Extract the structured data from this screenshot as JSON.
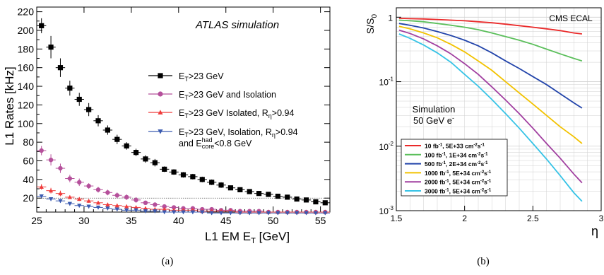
{
  "captions": [
    "(a)",
    "(b)"
  ],
  "colors": {
    "a_black": "#000000",
    "a_magenta": "#b5509b",
    "a_red": "#ef3b3b",
    "a_blue": "#3b5bb0",
    "b_red": "#ea2a2a",
    "b_green": "#5bbf5b",
    "b_blue": "#2244aa",
    "b_yellow": "#f2c200",
    "b_purple": "#a13fa0",
    "b_cyan": "#36c3e6",
    "grid": "#cfcfcf",
    "dotted": "#555555"
  },
  "chart_data": [
    {
      "type": "scatter",
      "title": "ATLAS simulation",
      "xlabel": "L1 EM E_T [GeV]",
      "ylabel": "L1 Rates [kHz]",
      "xlim": [
        25,
        56
      ],
      "ylim": [
        5,
        225
      ],
      "xticks": [
        25,
        30,
        35,
        40,
        45,
        50,
        55
      ],
      "yticks": [
        20,
        40,
        60,
        80,
        100,
        120,
        140,
        160,
        180,
        200,
        220
      ],
      "grid": false,
      "legend_position": "center-right",
      "reference_line_y": 20,
      "series": [
        {
          "name": "E_T>23 GeV",
          "marker": "square",
          "x": [
            25.5,
            26.5,
            27.5,
            28.5,
            29.5,
            30.5,
            31.5,
            32.5,
            33.5,
            34.5,
            35.5,
            36.5,
            37.5,
            38.5,
            39.5,
            40.5,
            41.5,
            42.5,
            43.5,
            44.5,
            45.5,
            46.5,
            47.5,
            48.5,
            49.5,
            50.5,
            51.5,
            52.5,
            53.5,
            54.5,
            55.5
          ],
          "y": [
            205,
            182,
            160,
            138,
            126,
            115,
            103,
            93,
            83,
            76,
            69,
            62,
            58,
            51,
            48,
            45,
            43,
            40,
            37,
            34,
            31,
            29,
            27,
            25,
            24,
            22,
            21,
            19,
            18,
            16,
            15
          ],
          "err": [
            8,
            12,
            10,
            8,
            7,
            7,
            6,
            5,
            5,
            4,
            4,
            4,
            4,
            3,
            3,
            3,
            3,
            3,
            3,
            3,
            2,
            2,
            2,
            2,
            2,
            2,
            2,
            2,
            2,
            2,
            2
          ]
        },
        {
          "name": "E_T>23 GeV and Isolation",
          "marker": "circle",
          "x": [
            25.5,
            26.5,
            27.5,
            28.5,
            29.5,
            30.5,
            31.5,
            32.5,
            33.5,
            34.5,
            35.5,
            36.5,
            37.5,
            38.5,
            39.5,
            40.5,
            41.5,
            42.5,
            43.5,
            44.5,
            45.5,
            46.5,
            47.5,
            48.5,
            49.5,
            50.5,
            51.5,
            52.5,
            53.5,
            54.5,
            55.5
          ],
          "y": [
            71,
            61,
            52,
            41,
            37,
            33,
            29,
            26,
            23,
            21,
            18,
            15,
            13,
            11,
            10,
            9,
            9,
            8,
            8,
            7,
            7,
            6,
            6,
            6,
            5,
            5,
            5,
            5,
            5,
            5,
            5
          ],
          "err": [
            5,
            6,
            5,
            4,
            4,
            3,
            3,
            3,
            3,
            3,
            3,
            2,
            2,
            2,
            2,
            2,
            2,
            2,
            2,
            2,
            2,
            2,
            2,
            2,
            2,
            2,
            2,
            2,
            2,
            2,
            2
          ]
        },
        {
          "name": "E_T>23 GeV Isolated, R_η>0.94",
          "marker": "triangle-up",
          "x": [
            25.5,
            26.5,
            27.5,
            28.5,
            29.5,
            30.5,
            31.5,
            32.5,
            33.5,
            34.5,
            35.5,
            36.5,
            37.5,
            38.5,
            39.5,
            40.5,
            41.5,
            42.5,
            43.5,
            44.5,
            45.5,
            46.5,
            47.5,
            48.5,
            49.5,
            50.5,
            51.5,
            52.5,
            53.5,
            54.5,
            55.5
          ],
          "y": [
            32,
            28,
            25,
            21,
            19,
            17,
            15,
            13,
            12,
            11,
            10,
            9,
            8,
            8,
            7,
            7,
            7,
            6,
            6,
            6,
            6,
            5,
            5,
            5,
            5,
            5,
            5,
            5,
            5,
            5,
            5
          ],
          "err": [
            3,
            3,
            3,
            2,
            2,
            2,
            2,
            2,
            2,
            2,
            2,
            2,
            2,
            2,
            2,
            2,
            2,
            2,
            2,
            2,
            2,
            2,
            2,
            2,
            2,
            2,
            2,
            2,
            2,
            2,
            2
          ]
        },
        {
          "name": "E_T>23 GeV, Isolation, R_η>0.94 and E_core^had<0.8 GeV",
          "marker": "triangle-down",
          "x": [
            25.5,
            26.5,
            27.5,
            28.5,
            29.5,
            30.5,
            31.5,
            32.5,
            33.5,
            34.5,
            35.5,
            36.5,
            37.5,
            38.5,
            39.5,
            40.5,
            41.5,
            42.5,
            43.5,
            44.5,
            45.5,
            46.5,
            47.5,
            48.5,
            49.5,
            50.5,
            51.5,
            52.5,
            53.5,
            54.5,
            55.5
          ],
          "y": [
            22,
            19,
            17,
            14,
            12,
            11,
            10,
            9,
            8,
            7,
            7,
            6,
            6,
            5,
            5,
            5,
            5,
            5,
            4,
            4,
            4,
            4,
            4,
            4,
            4,
            4,
            4,
            4,
            4,
            4,
            4
          ],
          "err": [
            2,
            2,
            2,
            2,
            2,
            2,
            2,
            2,
            2,
            2,
            2,
            2,
            2,
            2,
            2,
            2,
            2,
            2,
            2,
            2,
            2,
            2,
            2,
            2,
            2,
            2,
            2,
            2,
            2,
            2,
            2
          ]
        }
      ],
      "legend_labels": [
        {
          "base": "E",
          "sub": "T",
          "rest": ">23 GeV"
        },
        {
          "base": "E",
          "sub": "T",
          "rest": ">23 GeV and Isolation"
        },
        {
          "base": "E",
          "sub": "T",
          "rest": ">23 GeV Isolated, R",
          "sub2": "η",
          "rest2": ">0.94"
        },
        {
          "base": "E",
          "sub": "T",
          "rest": ">23 GeV, Isolation, R",
          "sub2": "η",
          "rest2": ">0.94"
        }
      ],
      "legend_extra": {
        "pre": "and E",
        "sup": "had",
        "sub": "core",
        "post": "<0.8 GeV"
      },
      "axis_text": {
        "xlabel_main": "L1 EM E",
        "xlabel_sub": "T",
        "xlabel_unit": "[GeV]",
        "ylabel_text": "L1 Rates [kHz]"
      }
    },
    {
      "type": "line",
      "title": "CMS ECAL",
      "annotation_lines": [
        "Simulation",
        "50 GeV e"
      ],
      "annotation_sup": "-",
      "xlabel": "η",
      "ylabel": "S/S0",
      "xlim": [
        1.5,
        3.0
      ],
      "ylim": [
        0.001,
        1.4
      ],
      "yscale": "log",
      "xticks": [
        1.5,
        2.0,
        2.5,
        3.0
      ],
      "xtick_labels": [
        "1.5",
        "2",
        "2.5",
        "3"
      ],
      "yticks": [
        0.001,
        0.01,
        0.1,
        1
      ],
      "ytick_exponents": [
        "-3",
        "-2",
        "-1"
      ],
      "ytick_base": "10",
      "ytick_one": "1",
      "grid": true,
      "legend_position": "bottom-left",
      "x": [
        1.52,
        1.6,
        1.7,
        1.8,
        1.9,
        2.0,
        2.1,
        2.2,
        2.3,
        2.4,
        2.5,
        2.6,
        2.7,
        2.8,
        2.86
      ],
      "series": [
        {
          "name": "10 fb-1, 5E+33 cm-2s-1",
          "y": [
            0.96,
            0.95,
            0.94,
            0.92,
            0.9,
            0.88,
            0.85,
            0.82,
            0.78,
            0.74,
            0.7,
            0.66,
            0.62,
            0.57,
            0.55
          ]
        },
        {
          "name": "100 fb-1, 1E+34 cm-2s-1",
          "y": [
            0.9,
            0.88,
            0.85,
            0.8,
            0.75,
            0.7,
            0.64,
            0.57,
            0.5,
            0.44,
            0.38,
            0.32,
            0.27,
            0.23,
            0.21
          ]
        },
        {
          "name": "500 fb-1, 2E+34 cm-2s-1",
          "y": [
            0.8,
            0.75,
            0.68,
            0.6,
            0.52,
            0.44,
            0.36,
            0.28,
            0.21,
            0.16,
            0.12,
            0.09,
            0.065,
            0.047,
            0.039
          ]
        },
        {
          "name": "1000 fb-1, 5E+34 cm-2s-1",
          "y": [
            0.72,
            0.66,
            0.57,
            0.48,
            0.38,
            0.29,
            0.21,
            0.15,
            0.1,
            0.067,
            0.045,
            0.03,
            0.02,
            0.014,
            0.011
          ]
        },
        {
          "name": "2000 fb-1, 5E+34 cm-2s-1",
          "y": [
            0.63,
            0.56,
            0.46,
            0.36,
            0.27,
            0.19,
            0.13,
            0.083,
            0.052,
            0.032,
            0.019,
            0.011,
            0.0065,
            0.0037,
            0.0027
          ]
        },
        {
          "name": "3000 fb-1, 5E+34 cm-2s-1",
          "y": [
            0.55,
            0.47,
            0.37,
            0.28,
            0.2,
            0.13,
            0.085,
            0.053,
            0.032,
            0.019,
            0.011,
            0.0063,
            0.0035,
            0.0019,
            0.0014
          ]
        }
      ],
      "legend_labels": [
        {
          "a": "10 fb",
          "s1": "-1",
          "b": ", 5E+33 cm",
          "s2": "-2",
          "c": "s",
          "s3": "-1"
        },
        {
          "a": "100 fb",
          "s1": "-1",
          "b": ", 1E+34 cm",
          "s2": "-2",
          "c": "s",
          "s3": "-1"
        },
        {
          "a": "500 fb",
          "s1": "-1",
          "b": ", 2E+34 cm",
          "s2": "-2",
          "c": "s",
          "s3": "-1"
        },
        {
          "a": "1000 fb",
          "s1": "-1",
          "b": ", 5E+34 cm",
          "s2": "-2",
          "c": "s",
          "s3": "-1"
        },
        {
          "a": "2000 fb",
          "s1": "-1",
          "b": ", 5E+34 cm",
          "s2": "-2",
          "c": "s",
          "s3": "-1"
        },
        {
          "a": "3000 fb",
          "s1": "-1",
          "b": ", 5E+34 cm",
          "s2": "-2",
          "c": "s",
          "s3": "-1"
        }
      ],
      "ylabel_parts": {
        "a": "S/S",
        "sub": "0"
      }
    }
  ]
}
